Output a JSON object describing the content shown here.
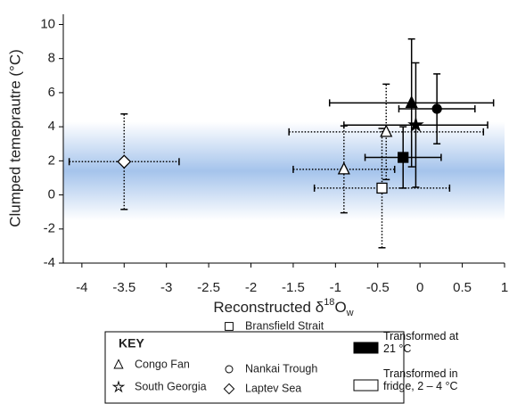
{
  "chart_data": {
    "type": "scatter",
    "ylabel": "Clumped temeprautre (°C)",
    "xlabel_parts": [
      "Reconstructed δ",
      "18",
      "O",
      "w"
    ],
    "xlim": [
      -4.22,
      1
    ],
    "ylim": [
      -4,
      10.6
    ],
    "xticks": [
      -4,
      -3.5,
      -3,
      -2.5,
      -2,
      -1.5,
      -1,
      -0.5,
      0,
      0.5,
      1
    ],
    "yticks": [
      -4,
      -2,
      0,
      2,
      4,
      6,
      8,
      10
    ],
    "band": [
      -1.5,
      4.3
    ],
    "band_color": "#5b93dc",
    "key_title": "KEY",
    "sites": [
      {
        "name": "Congo Fan",
        "marker": "triangle"
      },
      {
        "name": "South Georgia",
        "marker": "star"
      },
      {
        "name": "Bransfield Strait",
        "marker": "square"
      },
      {
        "name": "Nankai Trough",
        "marker": "circle"
      },
      {
        "name": "Laptev Sea",
        "marker": "diamond"
      }
    ],
    "series": [
      {
        "name": "Transformed at 21 °C",
        "color": "#000000",
        "line": "solid",
        "markers": [
          "triangle",
          "circle",
          "star",
          "square"
        ],
        "x": [
          -0.1,
          0.2,
          -0.05,
          -0.2
        ],
        "values": [
          5.4,
          5.05,
          4.1,
          2.2
        ],
        "xerr": [
          0.97,
          0.45,
          0.85,
          0.45
        ],
        "yerr": [
          3.75,
          2.05,
          3.65,
          1.8
        ]
      },
      {
        "name": "Transformed in fridge, 2 – 4 °C",
        "color": "#ffffff",
        "line": "dotted",
        "markers": [
          "diamond",
          "triangle",
          "triangle",
          "square"
        ],
        "x": [
          -3.5,
          -0.9,
          -0.4,
          -0.45
        ],
        "values": [
          1.95,
          1.5,
          3.7,
          0.4
        ],
        "xerr": [
          0.65,
          0.6,
          1.15,
          0.8
        ],
        "yerr": [
          2.8,
          2.55,
          2.8,
          3.5
        ]
      }
    ]
  }
}
